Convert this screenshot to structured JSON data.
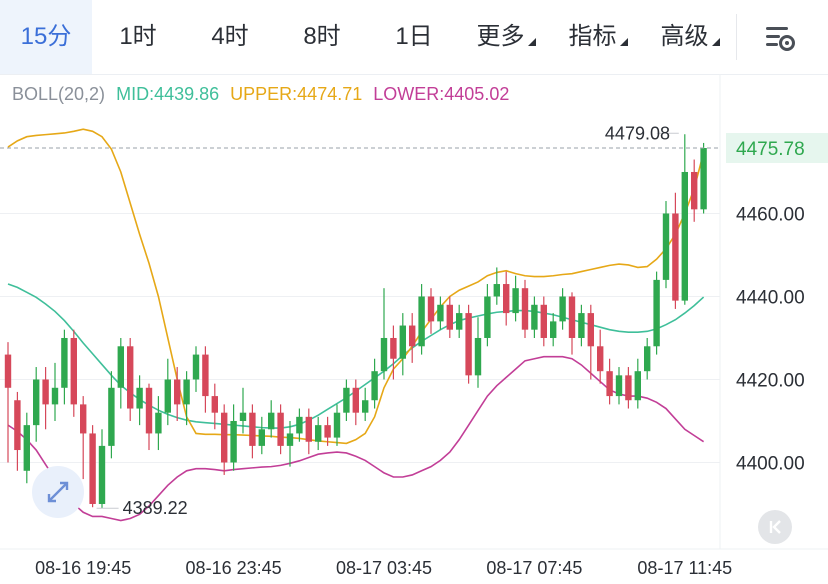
{
  "tabs": [
    {
      "label": "15分",
      "active": true,
      "caret": false
    },
    {
      "label": "1时",
      "active": false,
      "caret": false
    },
    {
      "label": "4时",
      "active": false,
      "caret": false
    },
    {
      "label": "8时",
      "active": false,
      "caret": false
    },
    {
      "label": "1日",
      "active": false,
      "caret": false
    },
    {
      "label": "更多",
      "active": false,
      "caret": true
    },
    {
      "label": "指标",
      "active": false,
      "caret": true
    },
    {
      "label": "高级",
      "active": false,
      "caret": true
    }
  ],
  "icons": {
    "settings": "chart-settings-icon",
    "expand": "expand-arrows-icon",
    "back": "collapse-left-icon"
  },
  "indicator": {
    "name": "BOLL(20,2)",
    "mid": "MID:4439.86",
    "upper": "UPPER:4474.71",
    "lower": "LOWER:4405.02"
  },
  "colors": {
    "up": "#2fa84f",
    "down": "#d6485a",
    "mid": "#3fbf9a",
    "upper": "#e6a817",
    "lower": "#c23e97",
    "active_tab": "#3b6fd8",
    "grid": "#eef0f3"
  },
  "chart_data": {
    "type": "candlestick",
    "y_ticks": [
      "4460.00",
      "4440.00",
      "4420.00",
      "4400.00"
    ],
    "y_tick_values": [
      4460,
      4440,
      4420,
      4400
    ],
    "ylim": [
      4382,
      4488
    ],
    "x_ticks": [
      "08-16 19:45",
      "08-16 23:45",
      "08-17 03:45",
      "08-17 07:45",
      "08-17 11:45"
    ],
    "x_tick_index": [
      8,
      24,
      40,
      56,
      72
    ],
    "current_price": "4475.78",
    "current_price_value": 4475.78,
    "max_label": "4479.08",
    "max_value": 4479.08,
    "max_index": 72,
    "min_label": "4389.22",
    "min_value": 4389.22,
    "min_index": 9,
    "candles": [
      [
        4426,
        4418,
        4429,
        4400
      ],
      [
        4415,
        4403,
        4417,
        4398
      ],
      [
        4398,
        4409,
        4412,
        4395
      ],
      [
        4409,
        4420,
        4423,
        4405
      ],
      [
        4420,
        4414,
        4423,
        4408
      ],
      [
        4414,
        4418,
        4424,
        4410
      ],
      [
        4418,
        4430,
        4432,
        4414
      ],
      [
        4430,
        4414,
        4432,
        4411
      ],
      [
        4414,
        4407,
        4416,
        4396
      ],
      [
        4407,
        4390,
        4409,
        4389.22
      ],
      [
        4390,
        4404,
        4408,
        4389
      ],
      [
        4404,
        4418,
        4422,
        4401
      ],
      [
        4418,
        4428,
        4430,
        4413
      ],
      [
        4428,
        4413,
        4430,
        4410
      ],
      [
        4413,
        4418,
        4421,
        4409
      ],
      [
        4418,
        4407,
        4419,
        4403
      ],
      [
        4407,
        4412,
        4416,
        4403
      ],
      [
        4412,
        4420,
        4425,
        4409
      ],
      [
        4420,
        4414,
        4423,
        4410
      ],
      [
        4414,
        4420,
        4422,
        4409
      ],
      [
        4420,
        4426,
        4428,
        4417
      ],
      [
        4426,
        4416,
        4428,
        4412
      ],
      [
        4416,
        4412,
        4419,
        4408
      ],
      [
        4412,
        4400,
        4414,
        4397
      ],
      [
        4400,
        4410,
        4414,
        4398
      ],
      [
        4410,
        4412,
        4418,
        4407
      ],
      [
        4412,
        4404,
        4414,
        4401
      ],
      [
        4404,
        4408,
        4411,
        4402
      ],
      [
        4408,
        4412,
        4415,
        4406
      ],
      [
        4412,
        4404,
        4414,
        4402
      ],
      [
        4404,
        4407,
        4410,
        4399
      ],
      [
        4407,
        4411,
        4413,
        4405
      ],
      [
        4411,
        4405,
        4413,
        4402
      ],
      [
        4405,
        4409,
        4411,
        4403
      ],
      [
        4409,
        4406,
        4411,
        4404
      ],
      [
        4406,
        4412,
        4414,
        4404
      ],
      [
        4412,
        4418,
        4420,
        4410
      ],
      [
        4418,
        4412,
        4420,
        4409
      ],
      [
        4412,
        4415,
        4418,
        4410
      ],
      [
        4415,
        4422,
        4425,
        4413
      ],
      [
        4422,
        4430,
        4442,
        4420
      ],
      [
        4430,
        4425,
        4433,
        4420
      ],
      [
        4425,
        4433,
        4436,
        4421
      ],
      [
        4433,
        4428,
        4436,
        4424
      ],
      [
        4428,
        4440,
        4443,
        4426
      ],
      [
        4440,
        4434,
        4442,
        4431
      ],
      [
        4434,
        4438,
        4440,
        4432
      ],
      [
        4438,
        4432,
        4440,
        4430
      ],
      [
        4432,
        4436,
        4438,
        4430
      ],
      [
        4436,
        4421,
        4438,
        4419
      ],
      [
        4421,
        4430,
        4435,
        4418
      ],
      [
        4430,
        4440,
        4443,
        4428
      ],
      [
        4440,
        4443,
        4447,
        4438
      ],
      [
        4443,
        4436,
        4446,
        4433
      ],
      [
        4436,
        4442,
        4445,
        4434
      ],
      [
        4442,
        4432,
        4444,
        4430
      ],
      [
        4432,
        4438,
        4440,
        4430
      ],
      [
        4438,
        4430,
        4440,
        4428
      ],
      [
        4430,
        4434,
        4436,
        4428
      ],
      [
        4434,
        4440,
        4442,
        4432
      ],
      [
        4440,
        4430,
        4441,
        4426
      ],
      [
        4430,
        4436,
        4438,
        4428
      ],
      [
        4436,
        4428,
        4438,
        4420
      ],
      [
        4428,
        4422,
        4432,
        4419
      ],
      [
        4422,
        4416,
        4425,
        4414
      ],
      [
        4416,
        4421,
        4423,
        4414
      ],
      [
        4421,
        4415,
        4423,
        4413
      ],
      [
        4415,
        4422,
        4425,
        4413
      ],
      [
        4422,
        4428,
        4430,
        4420
      ],
      [
        4428,
        4444,
        4446,
        4426
      ],
      [
        4444,
        4460,
        4463,
        4442
      ],
      [
        4460,
        4439,
        4465,
        4437
      ],
      [
        4439,
        4470,
        4479.08,
        4438
      ],
      [
        4470,
        4461,
        4473,
        4458
      ],
      [
        4461,
        4475.78,
        4477,
        4460
      ]
    ],
    "series": [
      {
        "name": "MID",
        "values": [
          4443.0,
          4442.2,
          4441.0,
          4439.8,
          4438.2,
          4436.4,
          4434.2,
          4431.6,
          4428.8,
          4426.2,
          4423.6,
          4421.0,
          4418.6,
          4416.8,
          4415.2,
          4413.8,
          4412.6,
          4411.6,
          4410.8,
          4410.2,
          4409.8,
          4409.6,
          4409.4,
          4409.2,
          4409.0,
          4408.8,
          4408.6,
          4408.4,
          4408.3,
          4408.3,
          4408.6,
          4409.2,
          4410.2,
          4411.4,
          4412.8,
          4414.2,
          4415.6,
          4417.2,
          4418.8,
          4420.4,
          4422.0,
          4423.8,
          4425.8,
          4427.6,
          4429.2,
          4430.6,
          4432.0,
          4433.2,
          4434.2,
          4434.8,
          4435.3,
          4435.8,
          4436.2,
          4436.4,
          4436.6,
          4436.6,
          4436.4,
          4436.0,
          4435.6,
          4435.0,
          4434.4,
          4433.8,
          4433.2,
          4432.6,
          4432.0,
          4431.6,
          4431.4,
          4431.4,
          4431.6,
          4432.2,
          4433.2,
          4434.4,
          4436.0,
          4437.8,
          4439.86
        ]
      },
      {
        "name": "UPPER",
        "values": [
          4476.0,
          4477.5,
          4478.5,
          4478.8,
          4479.0,
          4479.2,
          4479.4,
          4479.8,
          4480.3,
          4479.8,
          4478.5,
          4475.5,
          4470.0,
          4462.5,
          4455.0,
          4448.0,
          4440.0,
          4430.0,
          4420.0,
          4411.0,
          4407.0,
          4406.8,
          4406.8,
          4406.7,
          4406.7,
          4406.6,
          4406.5,
          4406.4,
          4406.3,
          4406.1,
          4406.0,
          4405.8,
          4405.5,
          4405.2,
          4405.0,
          4404.8,
          4404.6,
          4405.5,
          4407.0,
          4411.0,
          4418.0,
          4422.5,
          4425.0,
          4428.0,
          4431.5,
          4434.5,
          4437.5,
          4440.0,
          4441.5,
          4442.5,
          4443.5,
          4445.0,
          4445.8,
          4446.2,
          4445.5,
          4445.0,
          4444.8,
          4444.8,
          4445.0,
          4445.3,
          4445.5,
          4446.0,
          4446.5,
          4447.0,
          4447.5,
          4447.8,
          4447.6,
          4447.0,
          4447.2,
          4449.0,
          4451.5,
          4455.0,
          4460.0,
          4466.0,
          4474.71
        ]
      },
      {
        "name": "LOWER",
        "values": [
          4409.0,
          4407.5,
          4405.5,
          4403.0,
          4399.5,
          4396.0,
          4393.0,
          4390.0,
          4388.0,
          4387.0,
          4387.0,
          4386.5,
          4386.0,
          4386.5,
          4387.5,
          4389.5,
          4392.0,
          4394.5,
          4396.5,
          4398.0,
          4398.5,
          4398.5,
          4398.3,
          4398.0,
          4398.3,
          4398.5,
          4398.7,
          4398.9,
          4399.0,
          4399.3,
          4399.8,
          4400.4,
          4401.2,
          4402.0,
          4402.3,
          4402.5,
          4402.3,
          4401.5,
          4400.5,
          4399.0,
          4397.5,
          4396.5,
          4396.5,
          4397.0,
          4398.0,
          4399.0,
          4400.5,
          4402.5,
          4405.5,
          4409.0,
          4412.5,
          4416.0,
          4418.5,
          4420.5,
          4422.5,
          4424.5,
          4425.0,
          4425.5,
          4425.5,
          4425.5,
          4425.0,
          4423.5,
          4421.5,
          4419.5,
          4417.5,
          4416.5,
          4416.0,
          4416.0,
          4415.5,
          4414.5,
          4413.0,
          4410.5,
          4408.0,
          4406.5,
          4405.02
        ]
      }
    ]
  }
}
